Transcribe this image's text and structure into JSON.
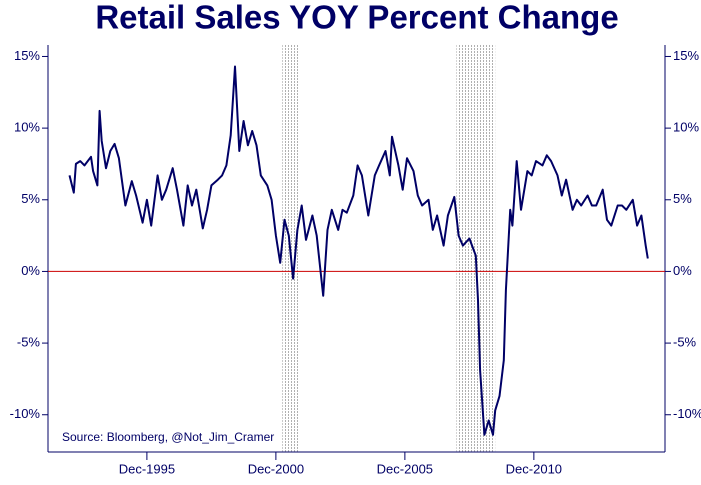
{
  "chart_data": {
    "type": "line",
    "title": "Retail Sales YOY Percent Change",
    "annotation": "Source: Bloomberg, @Not_Jim_Cramer",
    "xlim": [
      "1992-02",
      "2016-01"
    ],
    "xticks": [
      {
        "value": "1995-12",
        "label": "Dec-1995"
      },
      {
        "value": "2000-12",
        "label": "Dec-2000"
      },
      {
        "value": "2005-12",
        "label": "Dec-2005"
      },
      {
        "value": "2010-12",
        "label": "Dec-2010"
      }
    ],
    "ylim": [
      -12.6,
      15.8
    ],
    "yticks": [
      {
        "value": -10,
        "label": "-10%"
      },
      {
        "value": -5,
        "label": "-5%"
      },
      {
        "value": 0,
        "label": "0%"
      },
      {
        "value": 5,
        "label": "5%"
      },
      {
        "value": 10,
        "label": "10%"
      },
      {
        "value": 15,
        "label": "15%"
      }
    ],
    "reference_line": {
      "value": 0,
      "color": "#cc0000"
    },
    "shaded_periods": [
      [
        "2001-03",
        "2001-11"
      ],
      [
        "2007-12",
        "2009-06"
      ]
    ],
    "x": [
      "1992-12",
      "1993-02",
      "1993-03",
      "1993-05",
      "1993-07",
      "1993-10",
      "1993-11",
      "1994-01",
      "1994-02",
      "1994-03",
      "1994-05",
      "1994-07",
      "1994-09",
      "1994-11",
      "1995-01",
      "1995-02",
      "1995-05",
      "1995-07",
      "1995-10",
      "1995-12",
      "1996-02",
      "1996-05",
      "1996-07",
      "1996-09",
      "1996-12",
      "1997-02",
      "1997-05",
      "1997-07",
      "1997-09",
      "1997-11",
      "1998-02",
      "1998-04",
      "1998-06",
      "1998-09",
      "1998-11",
      "1999-01",
      "1999-03",
      "1999-05",
      "1999-07",
      "1999-09",
      "1999-11",
      "2000-01",
      "2000-03",
      "2000-05",
      "2000-08",
      "2000-10",
      "2000-12",
      "2001-02",
      "2001-04",
      "2001-06",
      "2001-08",
      "2001-10",
      "2001-12",
      "2002-02",
      "2002-05",
      "2002-07",
      "2002-10",
      "2002-12",
      "2003-02",
      "2003-05",
      "2003-07",
      "2003-09",
      "2003-12",
      "2004-02",
      "2004-04",
      "2004-07",
      "2004-10",
      "2004-12",
      "2005-03",
      "2005-05",
      "2005-06",
      "2005-09",
      "2005-11",
      "2006-01",
      "2006-04",
      "2006-06",
      "2006-08",
      "2006-11",
      "2007-01",
      "2007-03",
      "2007-06",
      "2007-08",
      "2007-11",
      "2008-01",
      "2008-03",
      "2008-06",
      "2008-09",
      "2008-10",
      "2008-11",
      "2009-01",
      "2009-03",
      "2009-05",
      "2009-06",
      "2009-08",
      "2009-10",
      "2009-11",
      "2010-01",
      "2010-02",
      "2010-04",
      "2010-06",
      "2010-09",
      "2010-11",
      "2011-01",
      "2011-04",
      "2011-06",
      "2011-08",
      "2011-11",
      "2012-01",
      "2012-03",
      "2012-06",
      "2012-08",
      "2012-10",
      "2013-01",
      "2013-03",
      "2013-05",
      "2013-08",
      "2013-10",
      "2013-12",
      "2014-03",
      "2014-05",
      "2014-07",
      "2014-10",
      "2014-12",
      "2015-02",
      "2015-04",
      "2015-05"
    ],
    "series": [
      {
        "color": "#000066",
        "values": [
          6.7,
          5.5,
          7.5,
          7.7,
          7.4,
          8.0,
          7.0,
          6.0,
          11.2,
          9.1,
          7.2,
          8.4,
          8.9,
          7.9,
          5.7,
          4.6,
          6.3,
          5.3,
          3.4,
          5.0,
          3.2,
          6.7,
          5.0,
          5.7,
          7.2,
          5.7,
          3.2,
          6.0,
          4.6,
          5.7,
          3.0,
          4.3,
          6.0,
          6.4,
          6.7,
          7.4,
          9.5,
          14.3,
          8.4,
          10.5,
          8.8,
          9.8,
          8.8,
          6.7,
          6.0,
          5.0,
          2.5,
          0.6,
          3.6,
          2.5,
          -0.5,
          2.9,
          4.6,
          2.2,
          3.9,
          2.5,
          -1.7,
          2.9,
          4.3,
          2.9,
          4.3,
          4.1,
          5.3,
          7.4,
          6.7,
          3.9,
          6.7,
          7.4,
          8.4,
          6.7,
          9.4,
          7.4,
          5.7,
          7.9,
          7.0,
          5.3,
          4.6,
          5.0,
          2.9,
          3.9,
          1.8,
          3.9,
          5.2,
          2.5,
          1.8,
          2.3,
          1.1,
          -2.0,
          -6.9,
          -11.4,
          -10.4,
          -11.4,
          -9.7,
          -8.7,
          -6.2,
          -1.3,
          4.3,
          3.2,
          7.7,
          4.3,
          7.0,
          6.7,
          7.7,
          7.4,
          8.1,
          7.7,
          6.7,
          5.3,
          6.4,
          4.3,
          5.0,
          4.6,
          5.3,
          4.6,
          4.6,
          5.7,
          3.6,
          3.2,
          4.6,
          4.6,
          4.3,
          5.0,
          3.2,
          3.9,
          1.8,
          0.9
        ]
      }
    ]
  }
}
